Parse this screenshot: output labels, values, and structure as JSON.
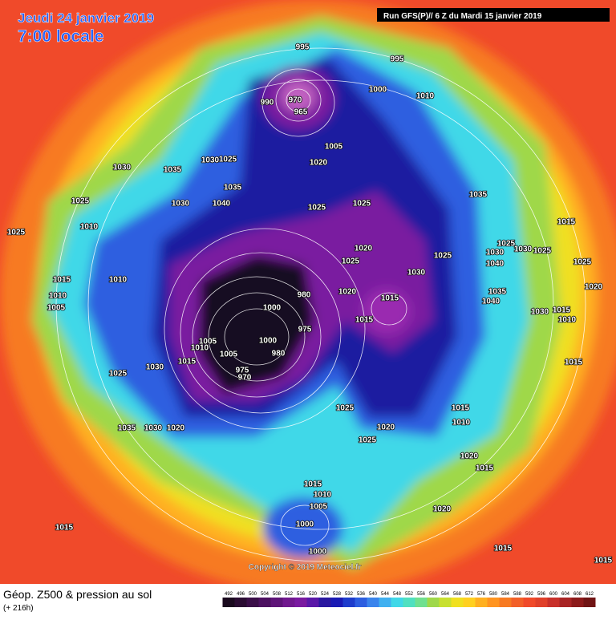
{
  "header": {
    "date": "Jeudi 24 janvier 2019",
    "time": "7:00 locale",
    "run": "Run GFS(P)// 6 Z du Mardi 15 janvier 2019"
  },
  "copyright": "Copyright © 2019 Meteociel.fr",
  "footer": {
    "title": "Géop. Z500 & pression au sol",
    "lead": "(+ 216h)"
  },
  "isobar_labels": [
    995,
    995,
    1000,
    1010,
    990,
    970,
    965,
    1005,
    1020,
    1030,
    1035,
    1030,
    1025,
    1035,
    1030,
    1040,
    1025,
    1025,
    1025,
    1025,
    1010,
    1020,
    1025,
    1025,
    1030,
    1035,
    1015,
    1025,
    1030,
    1030,
    1025,
    1040,
    1025,
    1020,
    1015,
    1010,
    1010,
    1005,
    980,
    1020,
    1015,
    1000,
    1035,
    1040,
    1030,
    1015,
    1010,
    975,
    1015,
    1005,
    1000,
    1010,
    1005,
    980,
    1015,
    1030,
    1015,
    975,
    970,
    1025,
    1025,
    1015,
    1010,
    1035,
    1030,
    1020,
    1020,
    1025,
    1020,
    1015,
    1015,
    1010,
    1005,
    1020,
    1000,
    1015,
    1000,
    1015,
    1015
  ],
  "legend": {
    "levels": [
      492,
      496,
      500,
      504,
      508,
      512,
      516,
      520,
      524,
      528,
      532,
      536,
      540,
      544,
      548,
      552,
      556,
      560,
      564,
      568,
      572,
      576,
      580,
      584,
      588,
      592,
      596,
      600,
      604,
      608,
      612
    ],
    "colors": [
      "#1a0a1e",
      "#2a0c32",
      "#3a0e48",
      "#4c1060",
      "#5e1478",
      "#70188e",
      "#7a1aa0",
      "#5a18a8",
      "#2a18a0",
      "#1a1ab4",
      "#1e3ccc",
      "#2d5ee0",
      "#3a84ec",
      "#40b0f0",
      "#40d8e8",
      "#50e0c0",
      "#70e090",
      "#9fd84a",
      "#c8e030",
      "#f0e020",
      "#ffd020",
      "#ffb020",
      "#ff9420",
      "#f77a22",
      "#f26028",
      "#f04a2a",
      "#e0402a",
      "#c8302a",
      "#a82424",
      "#8c1a1a",
      "#701414"
    ]
  }
}
